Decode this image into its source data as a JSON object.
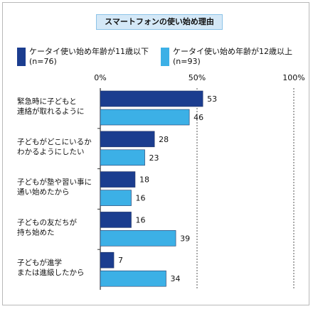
{
  "chart_data": {
    "type": "bar",
    "orientation": "horizontal",
    "title": "スマートフォンの使い始め理由",
    "xlim": [
      0,
      100
    ],
    "ticks": [
      "0%",
      "50%",
      "100%"
    ],
    "grid": "dashed line at 50% and 100%",
    "legend_position": "top",
    "categories": [
      [
        "緊急時に子どもと",
        "連絡が取れるように"
      ],
      [
        "子どもがどこにいるか",
        "わかるようにしたい"
      ],
      [
        "子どもが塾や習い事に",
        "通い始めたから"
      ],
      [
        "子どもの友だちが",
        "持ち始めた"
      ],
      [
        "子どもが進学",
        "または進級したから"
      ]
    ],
    "series": [
      {
        "name": "ケータイ使い始め年齢が11歳以下",
        "n": "(n=76)",
        "color": "#1b3d8f",
        "values": [
          53,
          28,
          18,
          16,
          7
        ]
      },
      {
        "name": "ケータイ使い始め年齢が12歳以上",
        "n": "(n=93)",
        "color": "#3cb0e6",
        "values": [
          46,
          23,
          16,
          39,
          34
        ]
      }
    ]
  }
}
